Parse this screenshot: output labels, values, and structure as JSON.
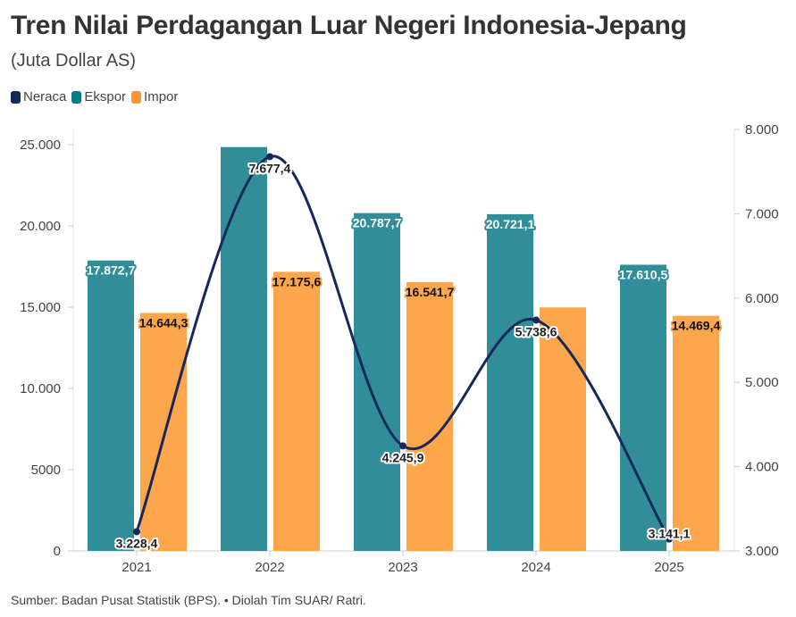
{
  "title": "Tren Nilai Perdagangan Luar Negeri Indonesia-Jepang",
  "subtitle": "(Juta Dollar AS)",
  "source": "Sumber: Badan Pusat Statistik (BPS). • Diolah Tim SUAR/ Ratri.",
  "colors": {
    "Neraca": "#14285a",
    "Ekspor": "#318e99",
    "Impor": "#fea64c",
    "ekspor_legend": "#077b85",
    "impor_legend": "#fd9433"
  },
  "chart_data": {
    "type": "bar+line",
    "categories": [
      "2021",
      "2022",
      "2023",
      "2024",
      "2025"
    ],
    "legend": [
      "Neraca",
      "Ekspor",
      "Impor"
    ],
    "legend_position": "top-left",
    "grid": false,
    "y_left": {
      "range": [
        0,
        25000
      ],
      "ticks": [
        0,
        5000,
        10000,
        15000,
        20000,
        25000
      ],
      "tick_labels": [
        "0",
        "5000",
        "10.000",
        "15.000",
        "20.000",
        "25.000"
      ]
    },
    "y_right": {
      "range": [
        3000,
        8000
      ],
      "ticks": [
        3000,
        4000,
        5000,
        6000,
        7000,
        8000
      ],
      "tick_labels": [
        "3.000",
        "4.000",
        "5.000",
        "6.000",
        "7.000",
        "8.000"
      ]
    },
    "series": [
      {
        "name": "Ekspor",
        "type": "bar",
        "axis": "left",
        "values": [
          17872.7,
          24853.0,
          20787.7,
          20721.1,
          17610.5
        ],
        "labels": [
          "17.872,7",
          "",
          "20.787,7",
          "20.721,1",
          "17.610,5"
        ]
      },
      {
        "name": "Impor",
        "type": "bar",
        "axis": "left",
        "values": [
          14644.3,
          17175.6,
          16541.7,
          14982.5,
          14469.4
        ],
        "labels": [
          "14.644,3",
          "17.175,6",
          "16.541,7",
          "",
          "14.469,4"
        ]
      },
      {
        "name": "Neraca",
        "type": "line",
        "axis": "right",
        "values": [
          3228.4,
          7677.4,
          4245.9,
          5738.6,
          3141.1
        ],
        "labels": [
          "3.228,4",
          "7.677,4",
          "4.245,9",
          "5.738,6",
          "3.141,1"
        ]
      }
    ]
  }
}
